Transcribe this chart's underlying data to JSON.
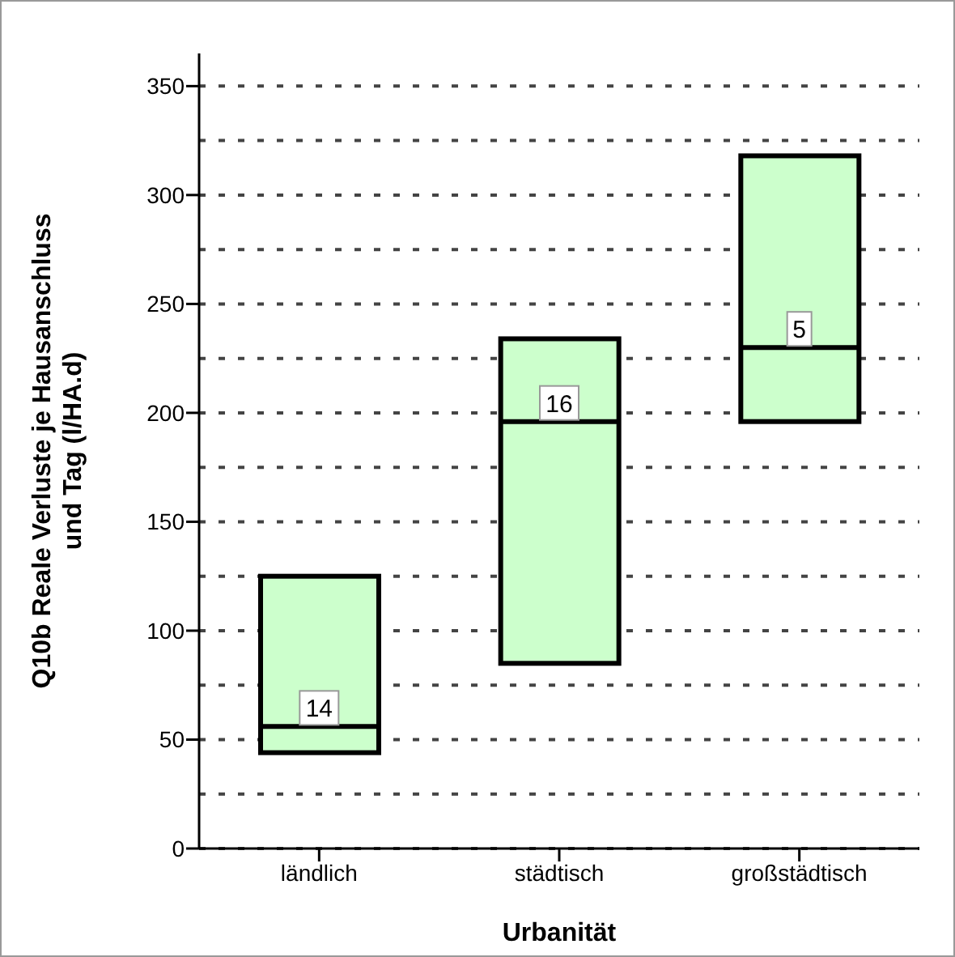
{
  "chart_data": {
    "type": "box",
    "xlabel": "Urbanität",
    "ylabel": "Q10b Reale Verluste je Hausanschluss und Tag (l/HA.d)",
    "categories": [
      "ländlich",
      "städtisch",
      "großstädtisch"
    ],
    "series": [
      {
        "color": "#ccffcc",
        "boxes": [
          {
            "low": 44,
            "q1": 44,
            "median": 56,
            "q3": 125,
            "high": 125
          },
          {
            "low": 85,
            "q1": 85,
            "median": 196,
            "q3": 234,
            "high": 234
          },
          {
            "low": 196,
            "q1": 196,
            "median": 230,
            "q3": 318,
            "high": 318
          }
        ]
      }
    ],
    "ylim": [
      0,
      365
    ],
    "yticks": [
      0,
      {
        "value": 25,
        "label": null
      },
      50,
      {
        "value": 75,
        "label": null
      },
      100,
      {
        "value": 125,
        "label": null
      },
      150,
      {
        "value": 175,
        "label": null
      },
      200,
      {
        "value": 225,
        "label": null
      },
      250,
      {
        "value": 275,
        "label": null
      },
      300,
      {
        "value": 325,
        "label": null
      },
      350
    ],
    "grid": "y",
    "annotations": [
      {
        "text": "14",
        "x": "ländlich",
        "y": 56
      },
      {
        "text": "16",
        "x": "städtisch",
        "y": 196
      },
      {
        "text": "5",
        "x": "großstädtisch",
        "y": 230
      }
    ]
  }
}
